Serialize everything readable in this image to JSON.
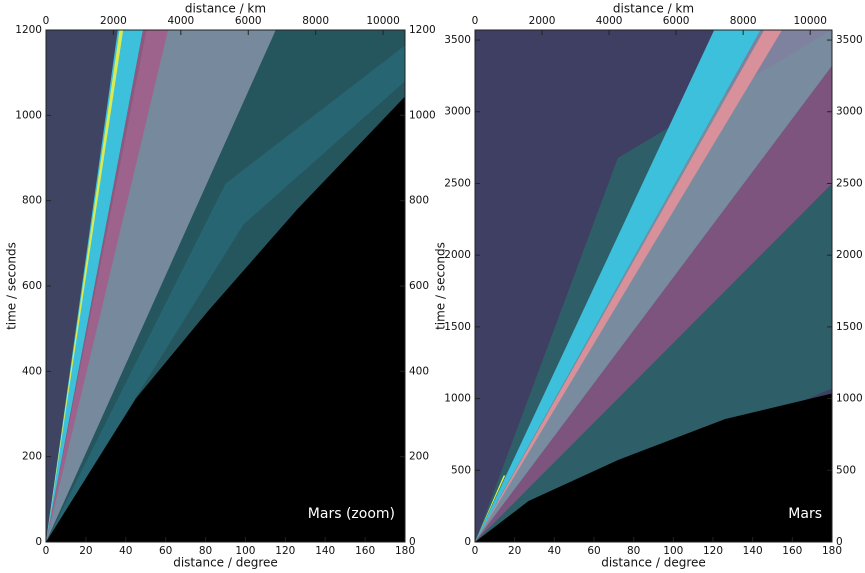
{
  "chart_data": [
    {
      "type": "image",
      "annotation": "Mars (zoom)",
      "xlabel": "distance / degree",
      "xlim": [
        0,
        180
      ],
      "xticks": [
        0,
        20,
        40,
        60,
        80,
        100,
        120,
        140,
        160,
        180
      ],
      "x2label": "distance / km",
      "x2lim": [
        0,
        10650
      ],
      "x2ticks": [
        0,
        2000,
        4000,
        6000,
        8000,
        10000
      ],
      "ylabel": "time / seconds",
      "ylim": [
        0,
        1200
      ],
      "yticks": [
        0,
        200,
        400,
        600,
        800,
        1000,
        1200
      ],
      "y2lim": [
        0,
        1200
      ],
      "y2ticks": [
        0,
        200,
        400,
        600,
        800,
        1000,
        1200
      ]
    },
    {
      "type": "image",
      "annotation": "Mars",
      "xlabel": "distance / degree",
      "xlim": [
        0,
        180
      ],
      "xticks": [
        0,
        20,
        40,
        60,
        80,
        100,
        120,
        140,
        160,
        180
      ],
      "x2label": "distance / km",
      "x2lim": [
        0,
        10650
      ],
      "x2ticks": [
        0,
        2000,
        4000,
        6000,
        8000,
        10000
      ],
      "ylabel": "time / seconds",
      "ylim": [
        0,
        3570
      ],
      "yticks": [
        0,
        500,
        1000,
        1500,
        2000,
        2500,
        3000,
        3500
      ],
      "y2lim": [
        0,
        3570
      ],
      "y2ticks": [
        0,
        500,
        1000,
        1500,
        2000,
        2500,
        3000,
        3500
      ]
    }
  ]
}
